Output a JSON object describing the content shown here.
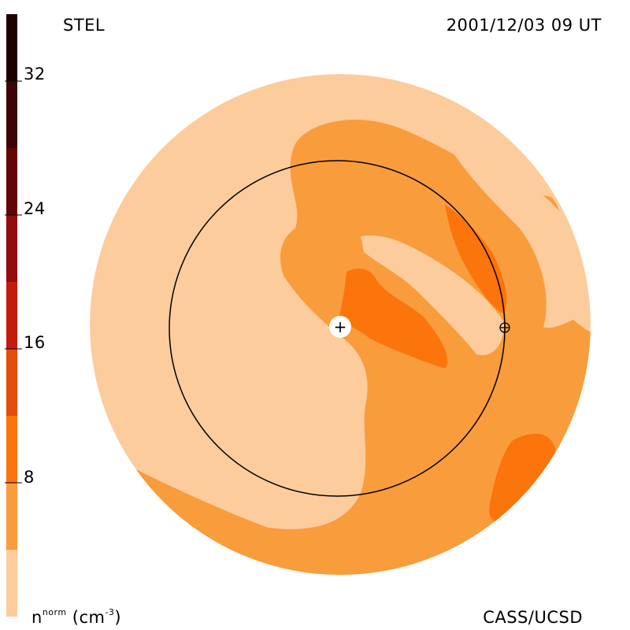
{
  "header": {
    "site": "STEL",
    "timestamp": "2001/12/03 09 UT"
  },
  "footer": {
    "credit": "CASS/UCSD"
  },
  "colorbar": {
    "unit_main": "n",
    "unit_sup": "norm",
    "unit_suffix": "(cm",
    "unit_exp": "-3",
    "unit_close": ")",
    "tick_labels": [
      "32",
      "24",
      "16",
      "8"
    ],
    "bands": [
      {
        "color": "#fccc9c",
        "range": [
          0,
          4
        ]
      },
      {
        "color": "#f99c3c",
        "range": [
          4,
          8
        ]
      },
      {
        "color": "#fc740c",
        "range": [
          8,
          12
        ]
      },
      {
        "color": "#e24c0c",
        "range": [
          12,
          16
        ]
      },
      {
        "color": "#c41c0c",
        "range": [
          16,
          20
        ]
      },
      {
        "color": "#940c0c",
        "range": [
          20,
          24
        ]
      },
      {
        "color": "#640404",
        "range": [
          24,
          28
        ]
      },
      {
        "color": "#3c0404",
        "range": [
          28,
          32
        ]
      },
      {
        "color": "#1c0000",
        "range": [
          32,
          36
        ]
      }
    ]
  },
  "map": {
    "center_marker": "+",
    "earth_marker": "⊕",
    "colors": {
      "lightest": "#fccc9c",
      "light": "#f99c3c",
      "medium": "#fc740c",
      "outline": "#000000"
    }
  }
}
